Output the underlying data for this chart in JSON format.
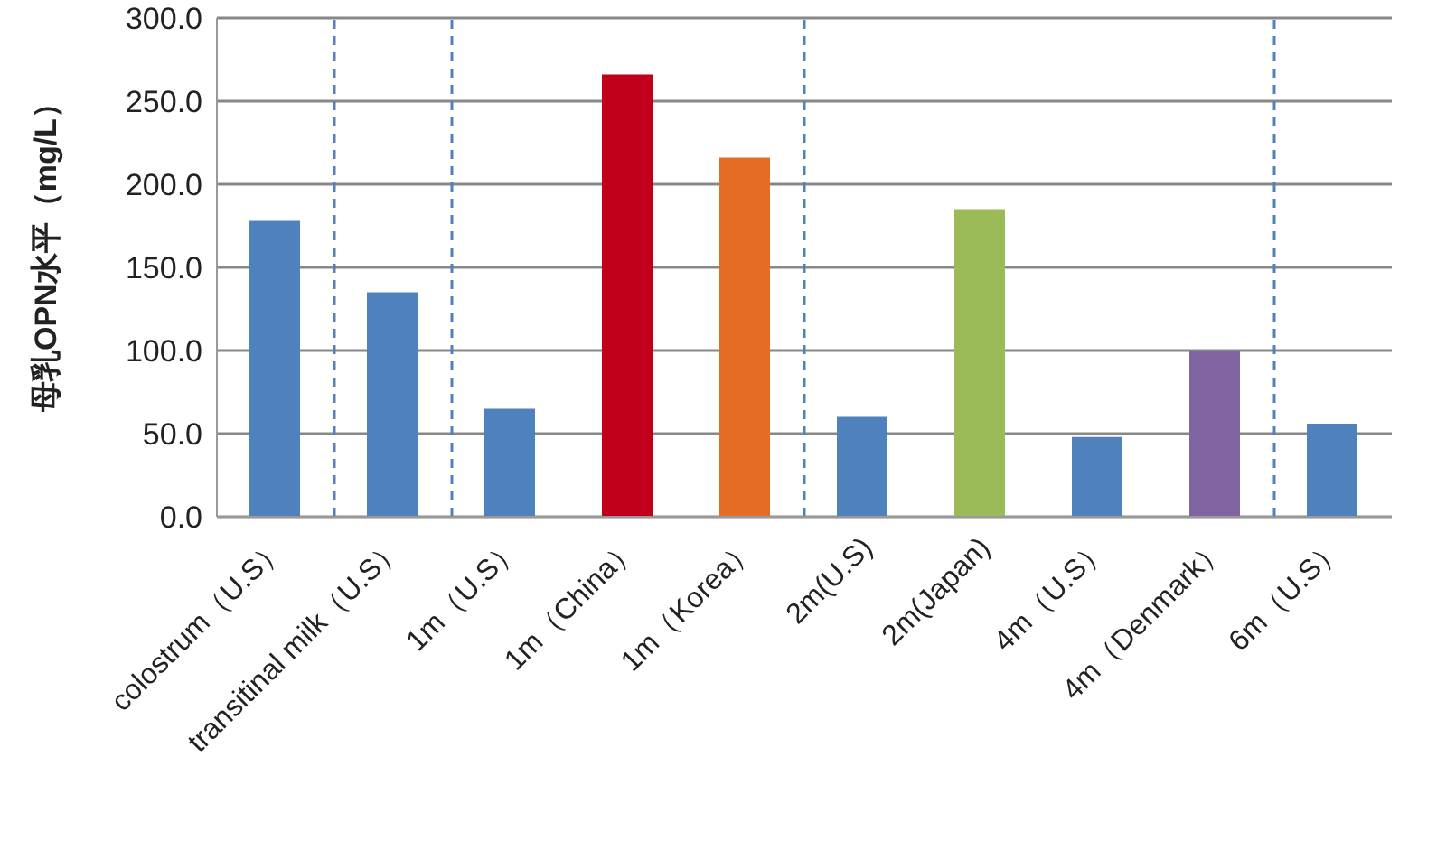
{
  "chart_data": {
    "type": "bar",
    "ylabel": "母乳OPN水平（mg/L）",
    "categories": [
      "colostrum（U.S）",
      "transitinal milk（U.S）",
      "1m（U.S）",
      "1m（China）",
      "1m（Korea）",
      "2m(U.S)",
      "2m(Japan)",
      "4m（U.S）",
      "4m（Denmark）",
      "6m（U.S）"
    ],
    "values": [
      178,
      135,
      65,
      266,
      216,
      60,
      185,
      48,
      100,
      56
    ],
    "colors": [
      "#4f81bd",
      "#4f81bd",
      "#4f81bd",
      "#c0001a",
      "#e46c24",
      "#4f81bd",
      "#9bbb59",
      "#4f81bd",
      "#8064a2",
      "#4f81bd"
    ],
    "ylim": [
      0,
      300
    ],
    "yticks": [
      {
        "value": 0,
        "label": "0.0"
      },
      {
        "value": 50,
        "label": "50.0"
      },
      {
        "value": 100,
        "label": "100.0"
      },
      {
        "value": 150,
        "label": "150.0"
      },
      {
        "value": 200,
        "label": "200.0"
      },
      {
        "value": 250,
        "label": "250.0"
      },
      {
        "value": 300,
        "label": "300.0"
      }
    ],
    "grid": "y",
    "legend": false
  }
}
